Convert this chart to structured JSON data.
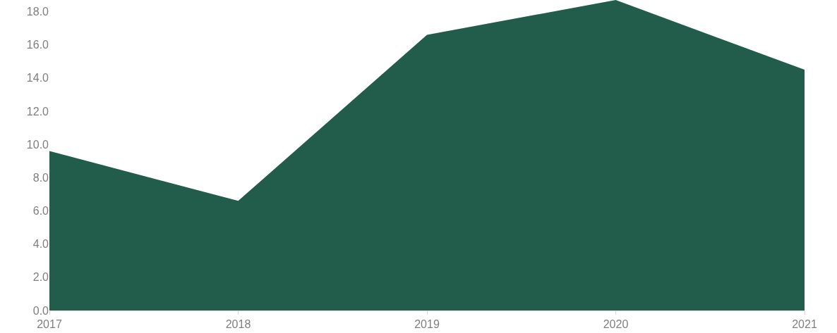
{
  "chart_data": {
    "type": "area",
    "x": [
      2017,
      2018,
      2019,
      2020,
      2021
    ],
    "values": [
      9.6,
      6.6,
      16.6,
      18.7,
      14.5
    ],
    "color": "#225c4b",
    "xlim": [
      2017,
      2021
    ],
    "xticks": [
      2017,
      2018,
      2019,
      2020,
      2021
    ],
    "ylim": [
      0,
      18.7
    ],
    "yticks": [
      {
        "value": 0,
        "label": "0.0"
      },
      {
        "value": 2,
        "label": "2.0"
      },
      {
        "value": 4,
        "label": "4.0"
      },
      {
        "value": 6,
        "label": "6.0"
      },
      {
        "value": 8,
        "label": "8.0"
      },
      {
        "value": 10,
        "label": "10.0"
      },
      {
        "value": 12,
        "label": "12.0"
      },
      {
        "value": 14,
        "label": "14.0"
      },
      {
        "value": 16,
        "label": "16.0"
      },
      {
        "value": 18,
        "label": "18.0"
      }
    ]
  }
}
